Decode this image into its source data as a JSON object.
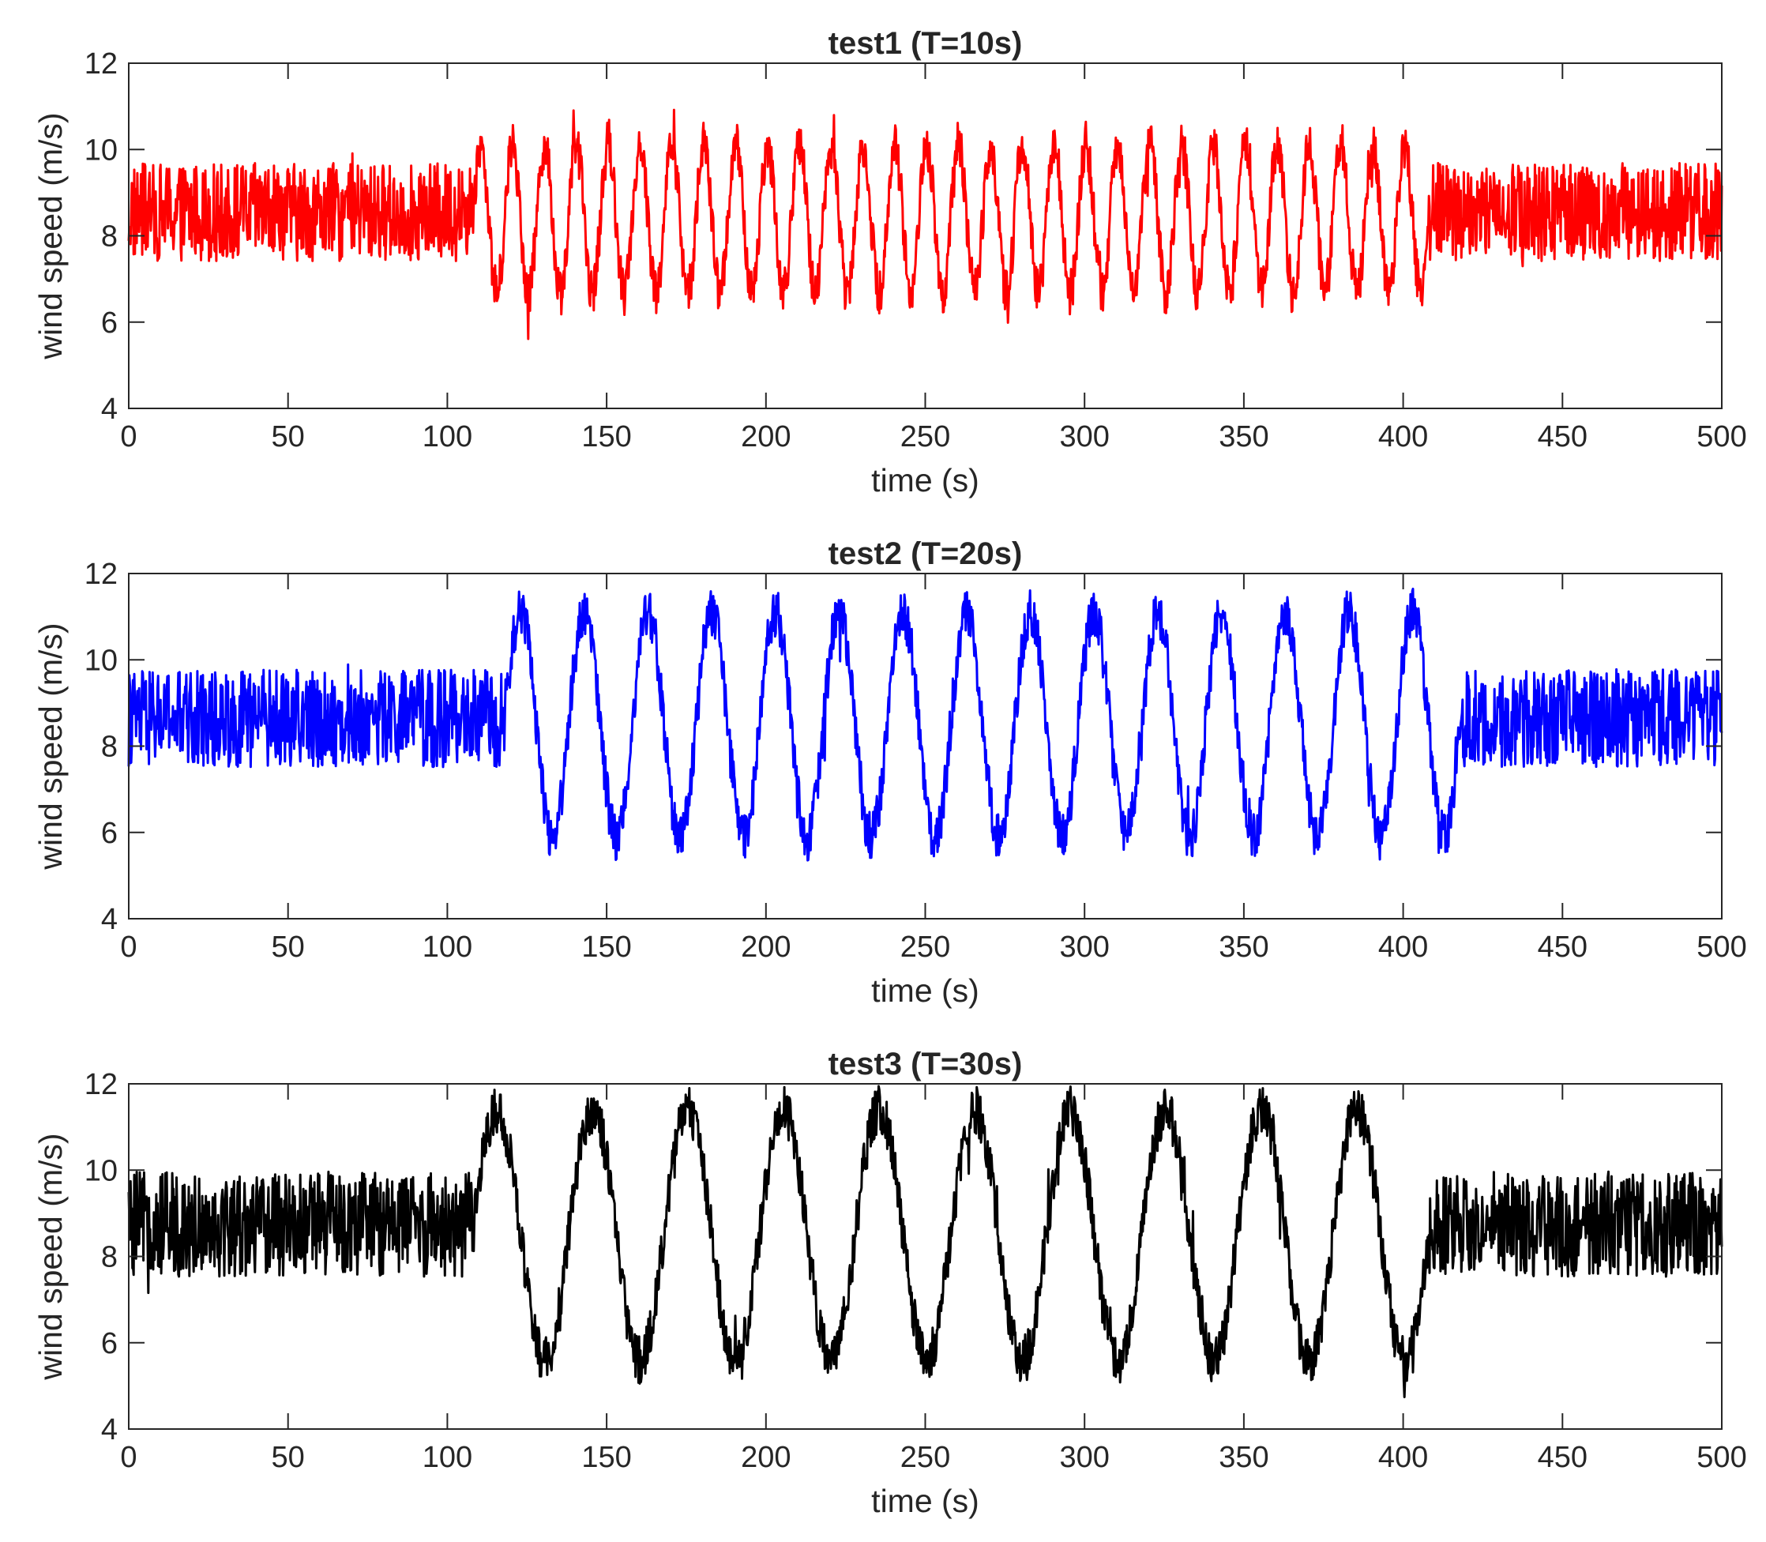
{
  "chart_data": [
    {
      "type": "line",
      "title": "test1 (T=10s)",
      "xlabel": "time (s)",
      "ylabel": "wind speed (m/s)",
      "xlim": [
        0,
        500
      ],
      "ylim": [
        4,
        12
      ],
      "xticks": [
        0,
        50,
        100,
        150,
        200,
        250,
        300,
        350,
        400,
        450,
        500
      ],
      "yticks": [
        4,
        6,
        8,
        10,
        12
      ],
      "grid": false,
      "series": [
        {
          "color": "#ff0000",
          "signal": {
            "baseline_range": [
              7.2,
              9.9
            ],
            "oscillation_start": 108,
            "oscillation_end": 408,
            "period_s": 10,
            "mean": 8.4,
            "amplitude": 1.7,
            "oscillation_range": [
              6.2,
              11.1
            ]
          }
        }
      ]
    },
    {
      "type": "line",
      "title": "test2 (T=20s)",
      "xlabel": "time (s)",
      "ylabel": "wind speed (m/s)",
      "xlim": [
        0,
        500
      ],
      "ylim": [
        4,
        12
      ],
      "xticks": [
        0,
        50,
        100,
        150,
        200,
        250,
        300,
        350,
        400,
        450,
        500
      ],
      "yticks": [
        4,
        6,
        8,
        10,
        12
      ],
      "grid": false,
      "series": [
        {
          "color": "#0000ff",
          "signal": {
            "baseline_range": [
              7.3,
              10.0
            ],
            "oscillation_start": 118,
            "oscillation_end": 418,
            "period_s": 20,
            "mean": 8.5,
            "amplitude": 2.6,
            "oscillation_range": [
              5.0,
              11.9
            ]
          }
        }
      ]
    },
    {
      "type": "line",
      "title": "test3 (T=30s)",
      "xlabel": "time (s)",
      "ylabel": "wind speed (m/s)",
      "xlim": [
        0,
        500
      ],
      "ylim": [
        4,
        12
      ],
      "xticks": [
        0,
        50,
        100,
        150,
        200,
        250,
        300,
        350,
        400,
        450,
        500
      ],
      "yticks": [
        4,
        6,
        8,
        10,
        12
      ],
      "grid": false,
      "series": [
        {
          "color": "#000000",
          "signal": {
            "baseline_range": [
              7.3,
              10.2
            ],
            "oscillation_start": 108,
            "oscillation_end": 408,
            "period_s": 30,
            "mean": 8.5,
            "amplitude": 2.9,
            "oscillation_range": [
              4.9,
              12.0
            ]
          }
        }
      ]
    }
  ]
}
